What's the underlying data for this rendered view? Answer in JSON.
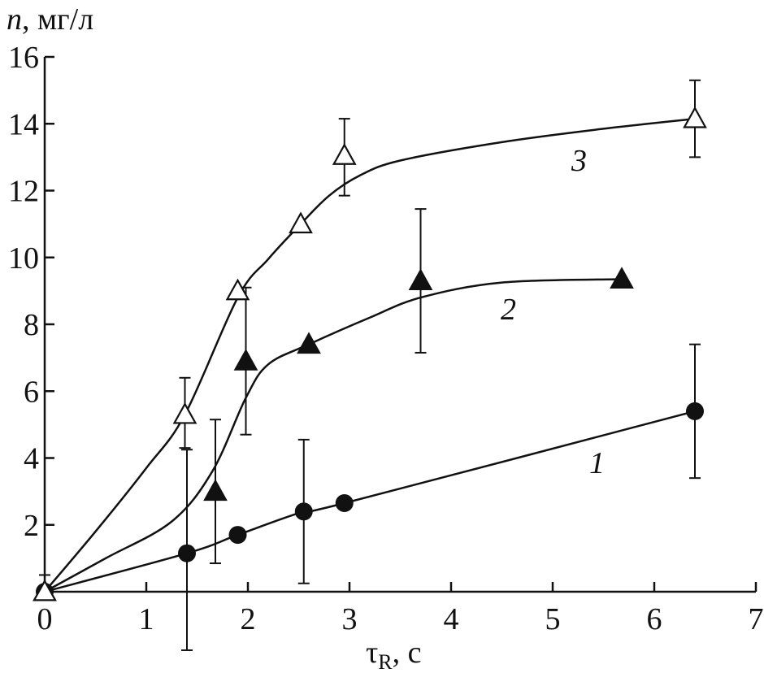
{
  "chart_data": {
    "type": "line",
    "ylabel_var": "n",
    "ylabel_unit": ", мг/л",
    "xlabel_var": "τ",
    "xlabel_sub": "R",
    "xlabel_unit": ", с",
    "xlim": [
      0,
      7
    ],
    "ylim": [
      0,
      16
    ],
    "x_ticks": [
      "0",
      "1",
      "2",
      "3",
      "4",
      "5",
      "6",
      "7"
    ],
    "y_ticks": [
      "2",
      "4",
      "6",
      "8",
      "10",
      "12",
      "14",
      "16"
    ],
    "grid": false,
    "series": [
      {
        "label": "1",
        "marker": "filled-circle",
        "points": [
          {
            "x": 0,
            "y": 0,
            "err_low": 0,
            "err_high": 0.5
          },
          {
            "x": 1.4,
            "y": 1.15,
            "err_low": 2.9,
            "err_high": 3.1
          },
          {
            "x": 1.9,
            "y": 1.7
          },
          {
            "x": 2.55,
            "y": 2.4,
            "err_low": 2.15,
            "err_high": 2.15
          },
          {
            "x": 2.95,
            "y": 2.65
          },
          {
            "x": 6.4,
            "y": 5.4,
            "err_low": 2.0,
            "err_high": 2.0
          }
        ],
        "curve": [
          [
            0,
            0
          ],
          [
            1.4,
            1.15
          ],
          [
            1.9,
            1.7
          ],
          [
            2.55,
            2.4
          ],
          [
            2.95,
            2.65
          ],
          [
            6.4,
            5.4
          ]
        ]
      },
      {
        "label": "2",
        "marker": "filled-triangle",
        "points": [
          {
            "x": 0,
            "y": 0
          },
          {
            "x": 1.68,
            "y": 3.0,
            "err_low": 2.15,
            "err_high": 2.15
          },
          {
            "x": 1.98,
            "y": 6.9,
            "err_low": 2.2,
            "err_high": 2.2
          },
          {
            "x": 2.6,
            "y": 7.4
          },
          {
            "x": 3.7,
            "y": 9.3,
            "err_low": 2.15,
            "err_high": 2.15
          },
          {
            "x": 5.68,
            "y": 9.35
          }
        ],
        "curve": [
          [
            0,
            0
          ],
          [
            0.6,
            1.0
          ],
          [
            1.25,
            2.1
          ],
          [
            1.65,
            3.6
          ],
          [
            1.98,
            5.8
          ],
          [
            2.2,
            6.8
          ],
          [
            2.6,
            7.4
          ],
          [
            3.2,
            8.2
          ],
          [
            3.7,
            8.8
          ],
          [
            4.5,
            9.25
          ],
          [
            5.68,
            9.35
          ]
        ]
      },
      {
        "label": "3",
        "marker": "open-triangle",
        "points": [
          {
            "x": 0,
            "y": 0
          },
          {
            "x": 1.38,
            "y": 5.3,
            "err_low": 1.0,
            "err_high": 1.1
          },
          {
            "x": 1.9,
            "y": 9.0
          },
          {
            "x": 2.52,
            "y": 11.0
          },
          {
            "x": 2.95,
            "y": 13.05,
            "err_low": 1.2,
            "err_high": 1.1
          },
          {
            "x": 6.4,
            "y": 14.15,
            "err_low": 1.15,
            "err_high": 1.15
          }
        ],
        "curve": [
          [
            0,
            0
          ],
          [
            0.5,
            1.8
          ],
          [
            1.0,
            3.7
          ],
          [
            1.38,
            5.3
          ],
          [
            1.9,
            8.8
          ],
          [
            2.2,
            9.95
          ],
          [
            2.52,
            11.0
          ],
          [
            2.8,
            11.85
          ],
          [
            3.1,
            12.45
          ],
          [
            3.5,
            12.9
          ],
          [
            4.5,
            13.45
          ],
          [
            5.5,
            13.85
          ],
          [
            6.4,
            14.15
          ]
        ]
      }
    ]
  }
}
